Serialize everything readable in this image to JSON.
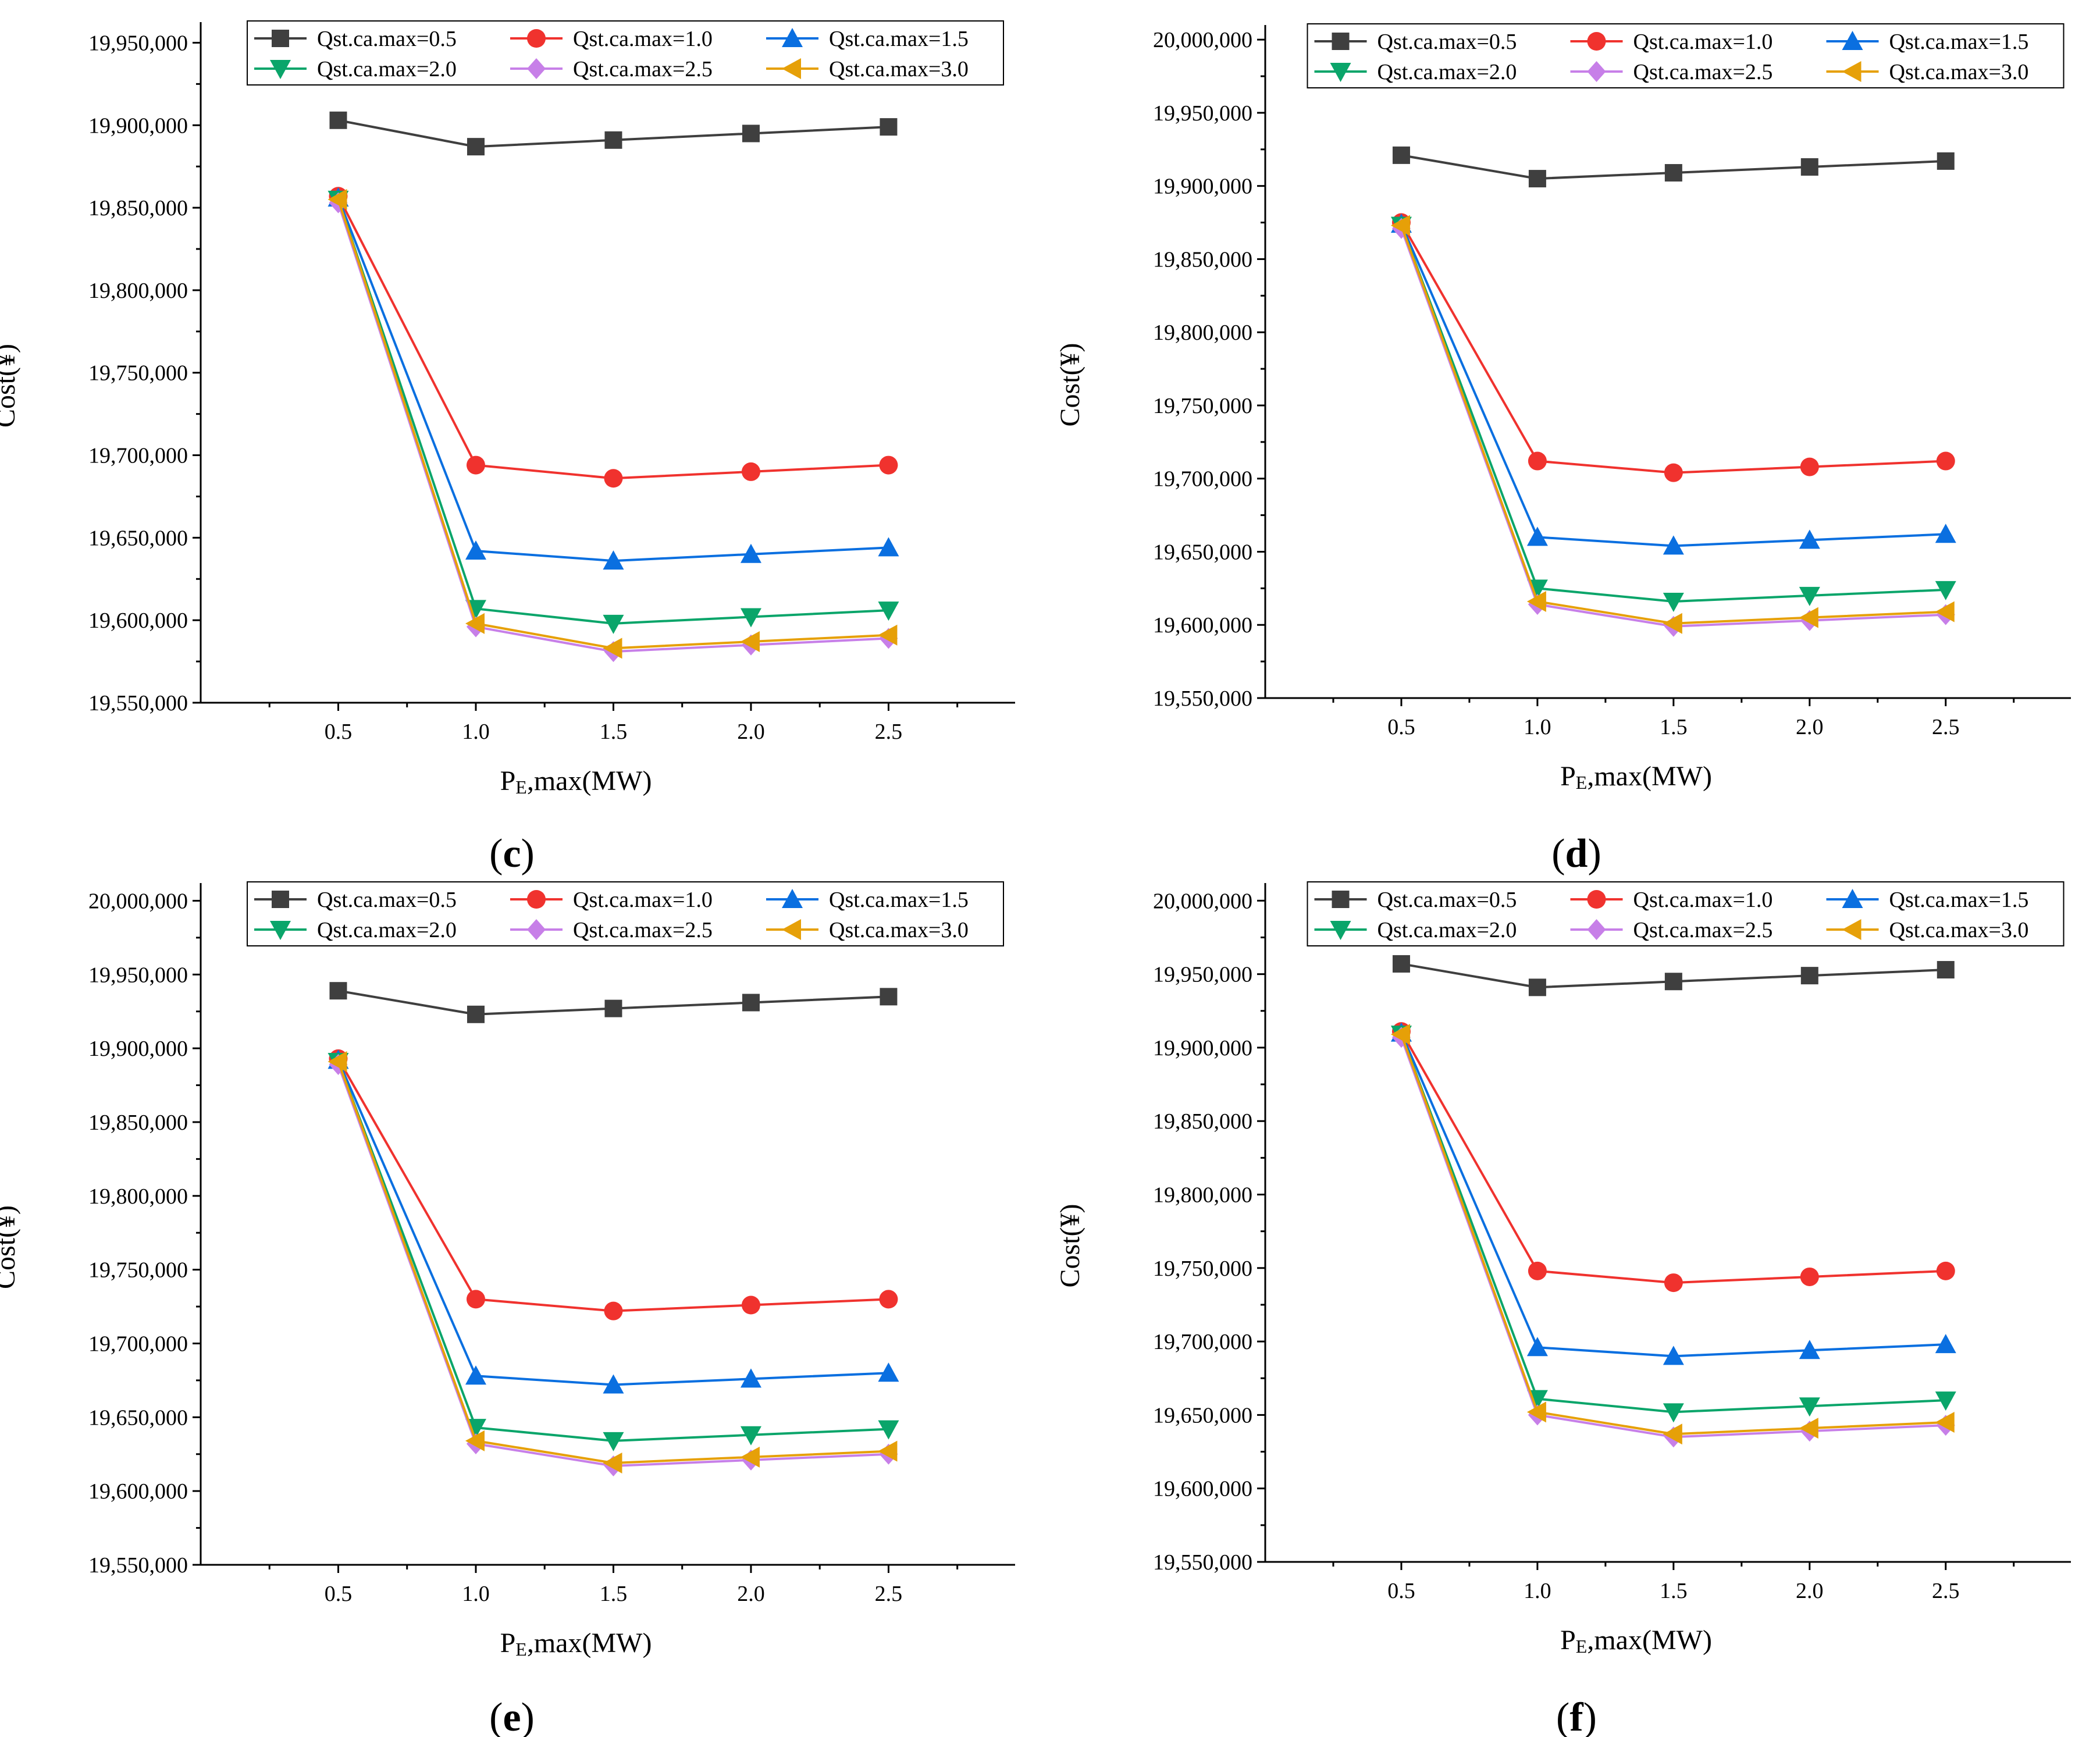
{
  "figure": {
    "series_colors": [
      "#3f3f3f",
      "#f0322e",
      "#0a6fe0",
      "#0aa56a",
      "#c77fe8",
      "#e6a008"
    ],
    "series_markers": [
      "square",
      "circle",
      "triangle-up",
      "triangle-down",
      "diamond",
      "triangle-left"
    ]
  },
  "chart_data": [
    {
      "panel": "c",
      "type": "line",
      "xlabel_main": "P",
      "xlabel_sub": "E",
      "xlabel_rest": ",max(MW)",
      "ylabel": "Cost(¥)",
      "x": [
        0.5,
        1.0,
        1.5,
        2.0,
        2.5
      ],
      "x_ticks": [
        "0.5",
        "1.0",
        "1.5",
        "2.0",
        "2.5"
      ],
      "xlim": [
        0.0,
        2.96
      ],
      "ylim": [
        19550000,
        19962500
      ],
      "y_ticks": [
        19550000,
        19600000,
        19650000,
        19700000,
        19750000,
        19800000,
        19850000,
        19900000,
        19950000
      ],
      "y_tick_labels": [
        "19,550,000",
        "19,600,000",
        "19,650,000",
        "19,700,000",
        "19,750,000",
        "19,800,000",
        "19,850,000",
        "19,900,000",
        "19,950,000"
      ],
      "legend": "top-center",
      "series": [
        {
          "name": "Qst.ca.max=0.5",
          "values": [
            19903000,
            19887000,
            19891000,
            19895000,
            19899000
          ]
        },
        {
          "name": "Qst.ca.max=1.0",
          "values": [
            19857000,
            19694000,
            19686000,
            19690000,
            19694000
          ]
        },
        {
          "name": "Qst.ca.max=1.5",
          "values": [
            19856000,
            19642000,
            19636000,
            19640000,
            19644000
          ]
        },
        {
          "name": "Qst.ca.max=2.0",
          "values": [
            19855000,
            19607000,
            19598000,
            19602000,
            19606000
          ]
        },
        {
          "name": "Qst.ca.max=2.5",
          "values": [
            19853000,
            19596000,
            19581000,
            19585000,
            19589000
          ]
        },
        {
          "name": "Qst.ca.max=3.0",
          "values": [
            19855000,
            19598000,
            19583000,
            19587000,
            19591000
          ]
        }
      ]
    },
    {
      "panel": "d",
      "type": "line",
      "xlabel_main": "P",
      "xlabel_sub": "E",
      "xlabel_rest": ",max(MW)",
      "ylabel": "Cost(¥)",
      "x": [
        0.5,
        1.0,
        1.5,
        2.0,
        2.5
      ],
      "x_ticks": [
        "0.5",
        "1.0",
        "1.5",
        "2.0",
        "2.5"
      ],
      "xlim": [
        0.0,
        2.96
      ],
      "ylim": [
        19550000,
        20010000
      ],
      "y_ticks": [
        19550000,
        19600000,
        19650000,
        19700000,
        19750000,
        19800000,
        19850000,
        19900000,
        19950000,
        20000000
      ],
      "y_tick_labels": [
        "19,550,000",
        "19,600,000",
        "19,650,000",
        "19,700,000",
        "19,750,000",
        "19,800,000",
        "19,850,000",
        "19,900,000",
        "19,950,000",
        "20,000,000"
      ],
      "legend": "top-center",
      "series": [
        {
          "name": "Qst.ca.max=0.5",
          "values": [
            19921000,
            19905000,
            19909000,
            19913000,
            19917000
          ]
        },
        {
          "name": "Qst.ca.max=1.0",
          "values": [
            19875000,
            19712000,
            19704000,
            19708000,
            19712000
          ]
        },
        {
          "name": "Qst.ca.max=1.5",
          "values": [
            19874000,
            19660000,
            19654000,
            19658000,
            19662000
          ]
        },
        {
          "name": "Qst.ca.max=2.0",
          "values": [
            19873000,
            19625000,
            19616000,
            19620000,
            19624000
          ]
        },
        {
          "name": "Qst.ca.max=2.5",
          "values": [
            19871000,
            19614000,
            19599000,
            19603000,
            19607000
          ]
        },
        {
          "name": "Qst.ca.max=3.0",
          "values": [
            19873000,
            19616000,
            19601000,
            19605000,
            19609000
          ]
        }
      ]
    },
    {
      "panel": "e",
      "type": "line",
      "xlabel_main": "P",
      "xlabel_sub": "E",
      "xlabel_rest": ",max(MW)",
      "ylabel": "Cost(¥)",
      "x": [
        0.5,
        1.0,
        1.5,
        2.0,
        2.5
      ],
      "x_ticks": [
        "0.5",
        "1.0",
        "1.5",
        "2.0",
        "2.5"
      ],
      "xlim": [
        0.0,
        2.96
      ],
      "ylim": [
        19550000,
        20012000
      ],
      "y_ticks": [
        19550000,
        19600000,
        19650000,
        19700000,
        19750000,
        19800000,
        19850000,
        19900000,
        19950000,
        20000000
      ],
      "y_tick_labels": [
        "19,550,000",
        "19,600,000",
        "19,650,000",
        "19,700,000",
        "19,750,000",
        "19,800,000",
        "19,850,000",
        "19,900,000",
        "19,950,000",
        "20,000,000"
      ],
      "legend": "top-center",
      "series": [
        {
          "name": "Qst.ca.max=0.5",
          "values": [
            19939000,
            19923000,
            19927000,
            19931000,
            19935000
          ]
        },
        {
          "name": "Qst.ca.max=1.0",
          "values": [
            19893000,
            19730000,
            19722000,
            19726000,
            19730000
          ]
        },
        {
          "name": "Qst.ca.max=1.5",
          "values": [
            19892000,
            19678000,
            19672000,
            19676000,
            19680000
          ]
        },
        {
          "name": "Qst.ca.max=2.0",
          "values": [
            19891000,
            19643000,
            19634000,
            19638000,
            19642000
          ]
        },
        {
          "name": "Qst.ca.max=2.5",
          "values": [
            19889000,
            19632000,
            19617000,
            19621000,
            19625000
          ]
        },
        {
          "name": "Qst.ca.max=3.0",
          "values": [
            19891000,
            19634000,
            19619000,
            19623000,
            19627000
          ]
        }
      ]
    },
    {
      "panel": "f",
      "type": "line",
      "xlabel_main": "P",
      "xlabel_sub": "E",
      "xlabel_rest": ",max(MW)",
      "ylabel": "Cost(¥)",
      "x": [
        0.5,
        1.0,
        1.5,
        2.0,
        2.5
      ],
      "x_ticks": [
        "0.5",
        "1.0",
        "1.5",
        "2.0",
        "2.5"
      ],
      "xlim": [
        0.0,
        2.96
      ],
      "ylim": [
        19550000,
        20012000
      ],
      "y_ticks": [
        19550000,
        19600000,
        19650000,
        19700000,
        19750000,
        19800000,
        19850000,
        19900000,
        19950000,
        20000000
      ],
      "y_tick_labels": [
        "19,550,000",
        "19,600,000",
        "19,650,000",
        "19,700,000",
        "19,750,000",
        "19,800,000",
        "19,850,000",
        "19,900,000",
        "19,950,000",
        "20,000,000"
      ],
      "legend": "top-center",
      "series": [
        {
          "name": "Qst.ca.max=0.5",
          "values": [
            19957000,
            19941000,
            19945000,
            19949000,
            19953000
          ]
        },
        {
          "name": "Qst.ca.max=1.0",
          "values": [
            19911000,
            19748000,
            19740000,
            19744000,
            19748000
          ]
        },
        {
          "name": "Qst.ca.max=1.5",
          "values": [
            19910000,
            19696000,
            19690000,
            19694000,
            19698000
          ]
        },
        {
          "name": "Qst.ca.max=2.0",
          "values": [
            19909000,
            19661000,
            19652000,
            19656000,
            19660000
          ]
        },
        {
          "name": "Qst.ca.max=2.5",
          "values": [
            19907000,
            19650000,
            19635000,
            19639000,
            19643000
          ]
        },
        {
          "name": "Qst.ca.max=3.0",
          "values": [
            19909000,
            19652000,
            19637000,
            19641000,
            19645000
          ]
        }
      ]
    }
  ]
}
